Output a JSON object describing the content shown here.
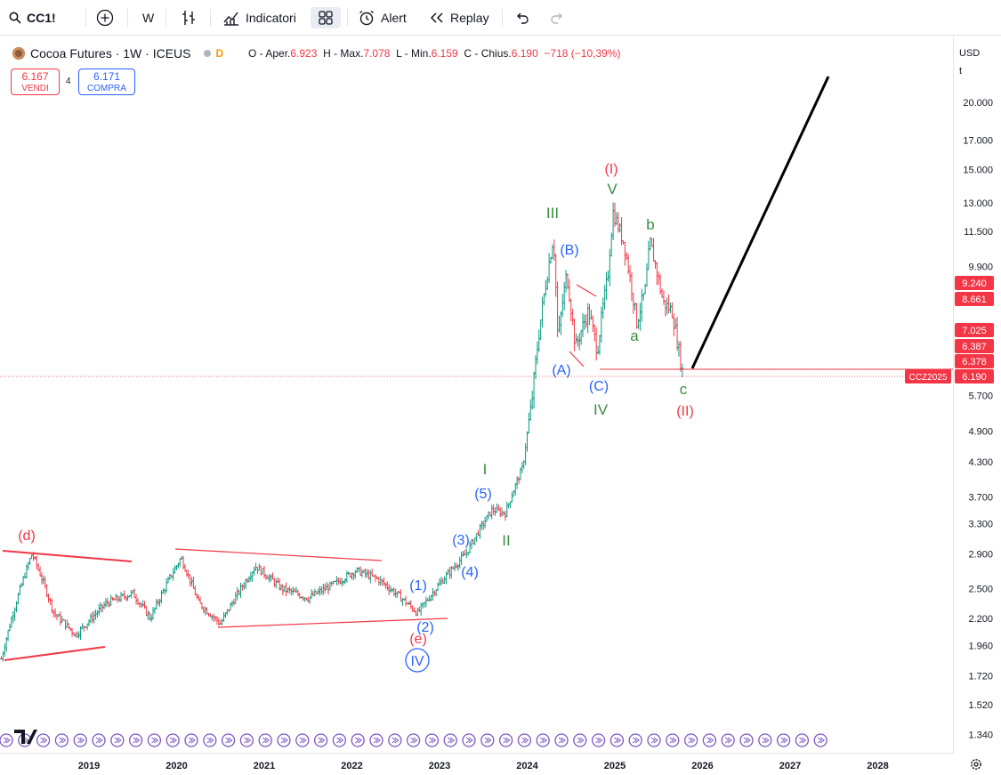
{
  "toolbar": {
    "symbol": "CC1!",
    "interval": "W",
    "indicators_label": "Indicatori",
    "alert_label": "Alert",
    "replay_label": "Replay"
  },
  "legend": {
    "title": "Cocoa Futures · 1W · ICEUS",
    "badge": "D",
    "open_label": "O - Aper.",
    "open": "6.923",
    "high_label": "H - Max.",
    "high": "7.078",
    "low_label": "L - Min.",
    "low": "6.159",
    "close_label": "C - Chius.",
    "close": "6.190",
    "change": "−718 (−10,39%)"
  },
  "trade": {
    "sell_price": "6.167",
    "sell_label": "VENDI",
    "spread": "4",
    "buy_price": "6.171",
    "buy_label": "COMPRA"
  },
  "price_axis": {
    "currency": "USD",
    "scale_mode": "t",
    "ticks": [
      "20.000",
      "17.000",
      "15.000",
      "13.000",
      "11.500",
      "9.900",
      "7.025",
      "5.700",
      "4.900",
      "4.300",
      "3.700",
      "3.300",
      "2.900",
      "2.500",
      "2.200",
      "1.960",
      "1.720",
      "1.520",
      "1.340"
    ],
    "tags": [
      {
        "text": "9.240",
        "color": "#f23645"
      },
      {
        "text": "8.661",
        "color": "#f23645"
      },
      {
        "text": "7.025",
        "color": "#f23645"
      },
      {
        "text": "6.387",
        "color": "#f23645"
      },
      {
        "text": "6.378",
        "color": "#f23645"
      },
      {
        "text": "6.190",
        "color": "#f23645"
      }
    ],
    "contract_tag": "CCZ2025"
  },
  "time_axis": {
    "labels": [
      "2019",
      "2020",
      "2021",
      "2022",
      "2023",
      "2024",
      "2025",
      "2026",
      "2027",
      "2028"
    ]
  },
  "wave_labels": [
    {
      "text": "(d)",
      "color": "#f23645"
    },
    {
      "text": "(e)",
      "color": "#f23645"
    },
    {
      "text": "IV",
      "color": "#2962ff"
    },
    {
      "text": "(1)",
      "color": "#2962ff"
    },
    {
      "text": "(2)",
      "color": "#2962ff"
    },
    {
      "text": "(3)",
      "color": "#2962ff"
    },
    {
      "text": "(4)",
      "color": "#2962ff"
    },
    {
      "text": "(5)",
      "color": "#2962ff"
    },
    {
      "text": "I",
      "color": "#388e3c"
    },
    {
      "text": "II",
      "color": "#388e3c"
    },
    {
      "text": "III",
      "color": "#388e3c"
    },
    {
      "text": "(A)",
      "color": "#2962ff"
    },
    {
      "text": "(B)",
      "color": "#2962ff"
    },
    {
      "text": "(C)",
      "color": "#2962ff"
    },
    {
      "text": "IV",
      "color": "#388e3c"
    },
    {
      "text": "(I)",
      "color": "#f23645"
    },
    {
      "text": "V",
      "color": "#388e3c"
    },
    {
      "text": "a",
      "color": "#388e3c"
    },
    {
      "text": "b",
      "color": "#388e3c"
    },
    {
      "text": "c",
      "color": "#388e3c"
    },
    {
      "text": "(II)",
      "color": "#f23645"
    }
  ],
  "colors": {
    "up": "#089981",
    "down": "#f23645",
    "label_red": "#f23645",
    "label_blue": "#2962ff",
    "label_green": "#388e3c",
    "projection": "#000000"
  }
}
